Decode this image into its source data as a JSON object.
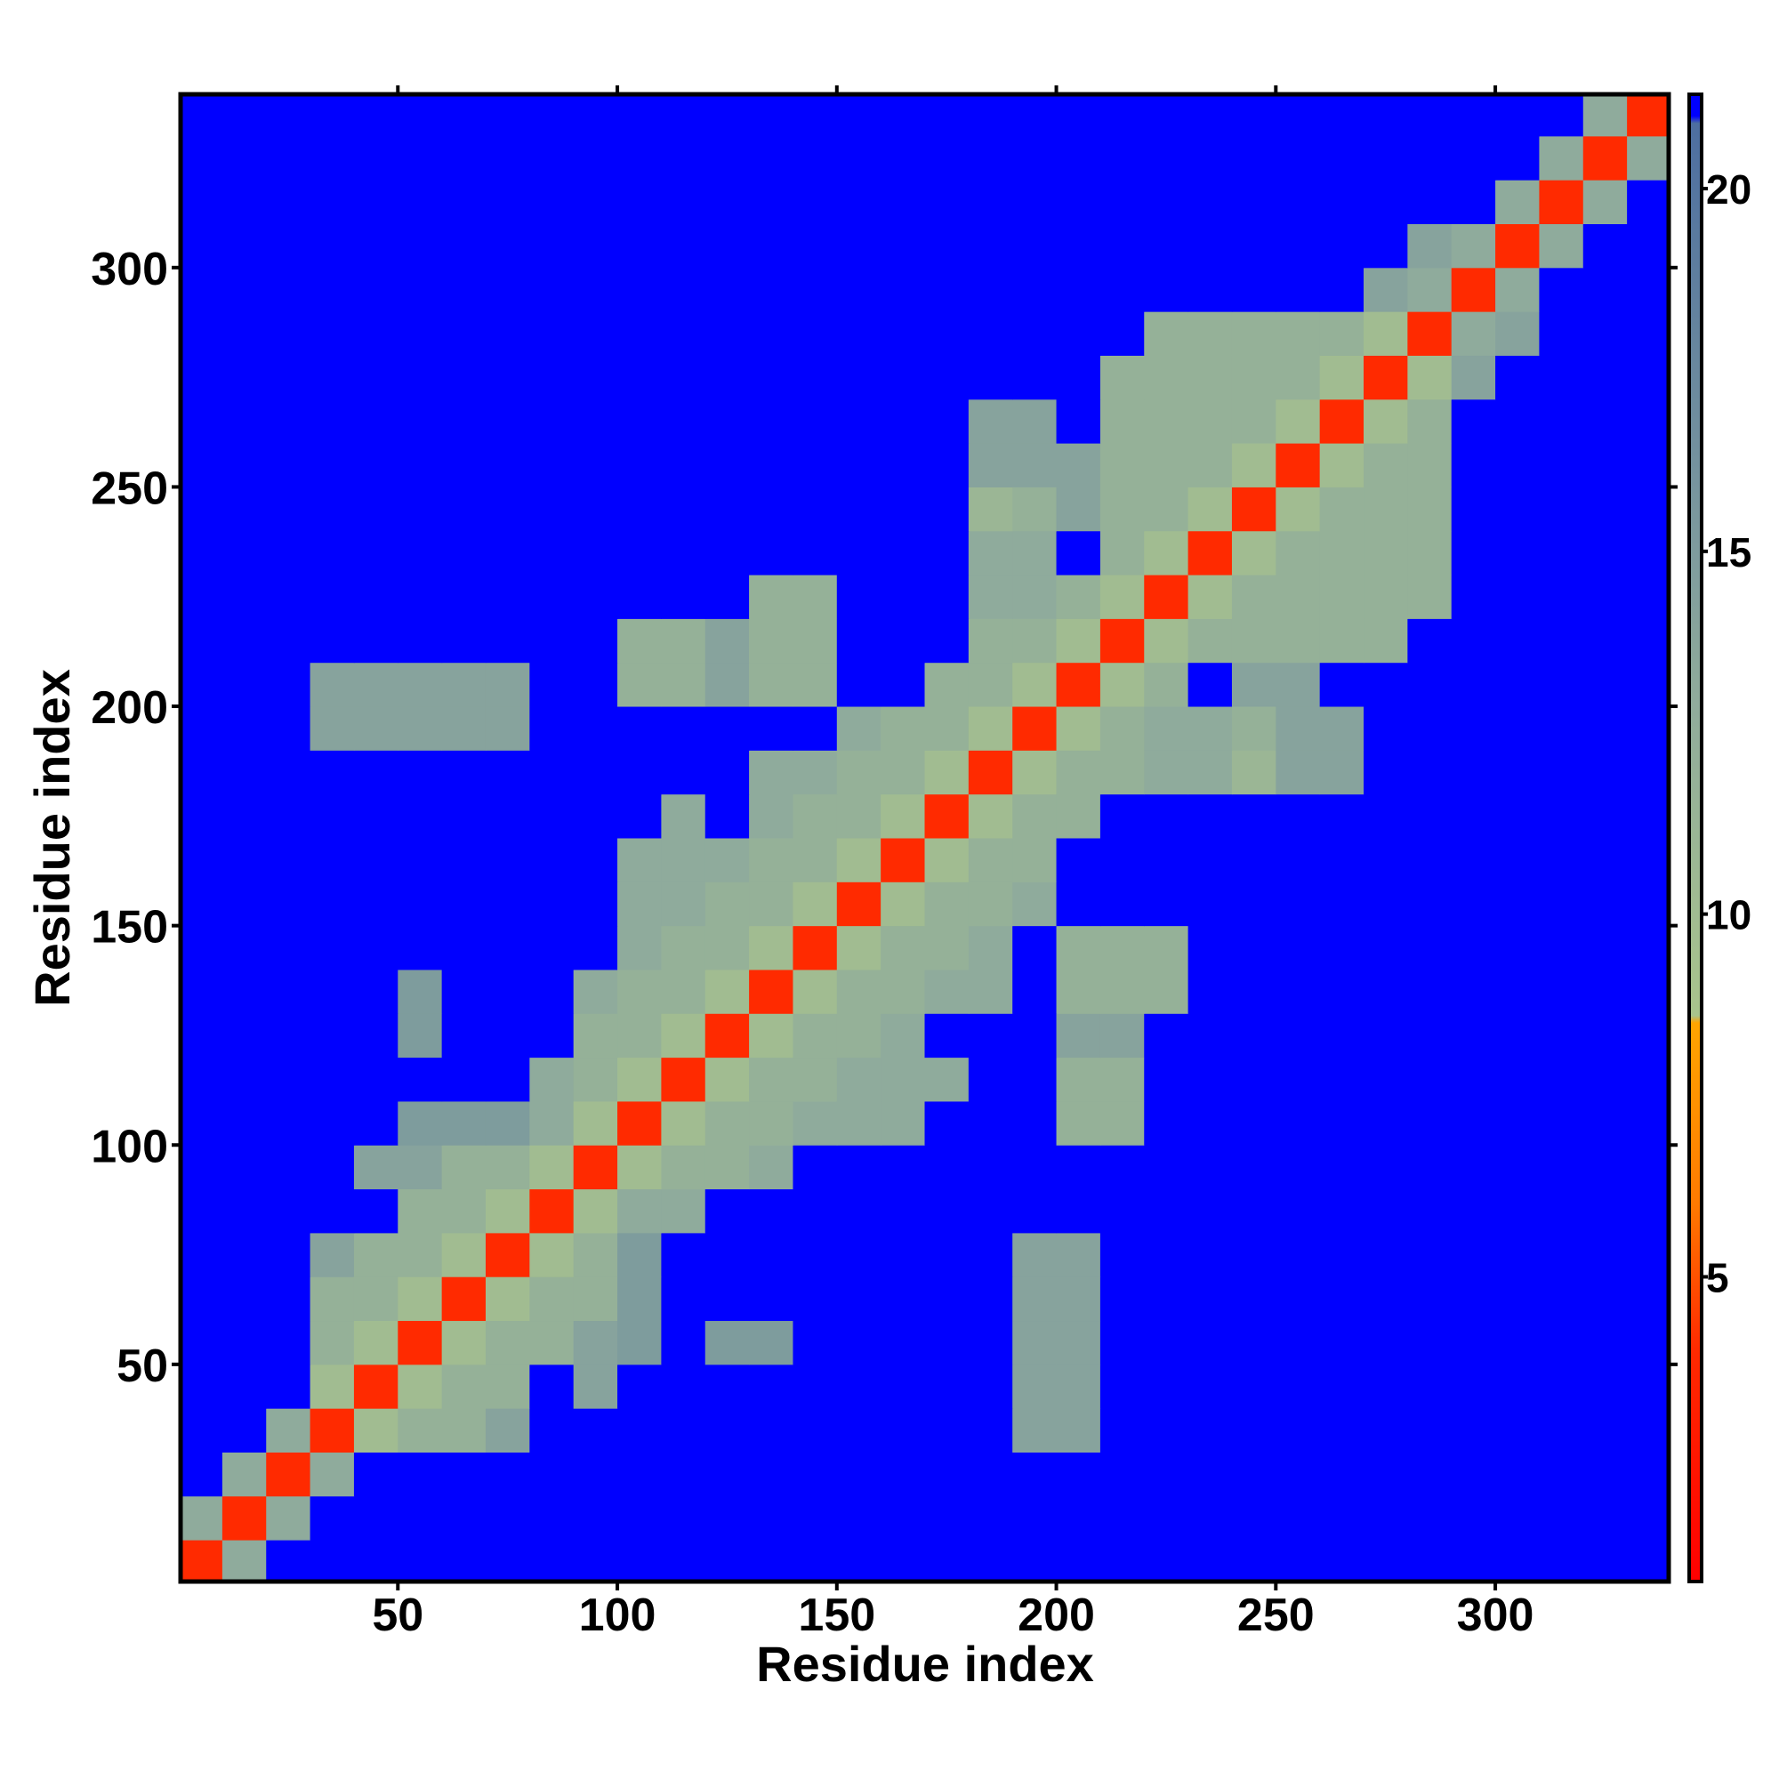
{
  "chart_data": {
    "type": "heatmap",
    "xlabel": "Residue index",
    "ylabel": "Residue index",
    "xlim": [
      0.5,
      339.5
    ],
    "ylim": [
      0.5,
      339.5
    ],
    "xticks": [
      50,
      100,
      150,
      200,
      250,
      300
    ],
    "yticks": [
      50,
      100,
      150,
      200,
      250,
      300
    ],
    "zlim": [
      0.8,
      21.3
    ],
    "zticks": [
      5,
      10,
      15,
      20
    ],
    "colorscale": [
      [
        0.8,
        "#ff0000"
      ],
      [
        4,
        "#ff2a00"
      ],
      [
        6,
        "#ff7a00"
      ],
      [
        8.5,
        "#ffa500"
      ],
      [
        8.6,
        "#a9c48c"
      ],
      [
        13,
        "#8fab9c"
      ],
      [
        20.9,
        "#4d6ea0"
      ],
      [
        21,
        "#0000ff"
      ]
    ],
    "x": [
      5,
      15,
      25,
      35,
      45,
      55,
      65,
      75,
      85,
      95,
      105,
      115,
      125,
      135,
      145,
      155,
      165,
      175,
      185,
      195,
      205,
      215,
      225,
      235,
      245,
      255,
      265,
      275,
      285,
      295,
      305,
      315,
      325,
      335
    ],
    "y": [
      5,
      15,
      25,
      35,
      45,
      55,
      65,
      75,
      85,
      95,
      105,
      115,
      125,
      135,
      145,
      155,
      165,
      175,
      185,
      195,
      205,
      215,
      225,
      235,
      245,
      255,
      265,
      275,
      285,
      295,
      305,
      315,
      325,
      335
    ],
    "z": [
      [
        4,
        13,
        21,
        21,
        21,
        21,
        21,
        21,
        21,
        21,
        21,
        21,
        21,
        21,
        21,
        21,
        21,
        21,
        21,
        21,
        21,
        21,
        21,
        21,
        21,
        21,
        21,
        21,
        21,
        21,
        21,
        21,
        21,
        21
      ],
      [
        13,
        4,
        13,
        21,
        21,
        21,
        21,
        21,
        21,
        21,
        21,
        21,
        21,
        21,
        21,
        21,
        21,
        21,
        21,
        21,
        21,
        21,
        21,
        21,
        21,
        21,
        21,
        21,
        21,
        21,
        21,
        21,
        21,
        21
      ],
      [
        21,
        13,
        4,
        13,
        21,
        21,
        21,
        21,
        21,
        21,
        21,
        21,
        21,
        21,
        21,
        21,
        21,
        21,
        21,
        21,
        21,
        21,
        21,
        21,
        21,
        21,
        21,
        21,
        21,
        21,
        21,
        21,
        21,
        21
      ],
      [
        21,
        21,
        13,
        4,
        10,
        12,
        12,
        14,
        21,
        21,
        21,
        21,
        21,
        21,
        21,
        21,
        21,
        21,
        21,
        14,
        14,
        21,
        21,
        21,
        21,
        21,
        21,
        21,
        21,
        21,
        21,
        21,
        21,
        21
      ],
      [
        21,
        21,
        21,
        10,
        4,
        10,
        12,
        12,
        21,
        14,
        21,
        21,
        21,
        21,
        21,
        21,
        21,
        21,
        21,
        14,
        14,
        21,
        21,
        21,
        21,
        21,
        21,
        21,
        21,
        21,
        21,
        21,
        21,
        21
      ],
      [
        21,
        21,
        21,
        12,
        10,
        4,
        10,
        12,
        12,
        14,
        15,
        21,
        15,
        15,
        21,
        21,
        21,
        21,
        21,
        14,
        14,
        21,
        21,
        21,
        21,
        21,
        21,
        21,
        21,
        21,
        21,
        21,
        21,
        21
      ],
      [
        21,
        21,
        21,
        12,
        12,
        10,
        4,
        10,
        12,
        12,
        15,
        21,
        21,
        21,
        21,
        21,
        21,
        21,
        21,
        14,
        14,
        21,
        21,
        21,
        21,
        21,
        21,
        21,
        21,
        21,
        21,
        21,
        21,
        21
      ],
      [
        21,
        21,
        21,
        14,
        12,
        12,
        10,
        4,
        10,
        12,
        15,
        21,
        21,
        21,
        21,
        21,
        21,
        21,
        21,
        14,
        14,
        21,
        21,
        21,
        21,
        21,
        21,
        21,
        21,
        21,
        21,
        21,
        21,
        21
      ],
      [
        21,
        21,
        21,
        21,
        21,
        12,
        12,
        10,
        4,
        10,
        13,
        13,
        21,
        21,
        21,
        21,
        21,
        21,
        21,
        21,
        21,
        21,
        21,
        21,
        21,
        21,
        21,
        21,
        21,
        21,
        21,
        21,
        21,
        21
      ],
      [
        21,
        21,
        21,
        21,
        14,
        14,
        12,
        12,
        10,
        4,
        10,
        12,
        12,
        13,
        21,
        21,
        21,
        21,
        21,
        21,
        21,
        21,
        21,
        21,
        21,
        21,
        21,
        21,
        21,
        21,
        21,
        21,
        21,
        21
      ],
      [
        21,
        21,
        21,
        21,
        21,
        15,
        15,
        15,
        13,
        10,
        4,
        10,
        12,
        12,
        13,
        13,
        13,
        21,
        21,
        21,
        12,
        12,
        21,
        21,
        21,
        21,
        21,
        21,
        21,
        21,
        21,
        21,
        21,
        21
      ],
      [
        21,
        21,
        21,
        21,
        21,
        21,
        21,
        21,
        13,
        12,
        10,
        4,
        10,
        12,
        12,
        13,
        13,
        13,
        21,
        21,
        12,
        12,
        21,
        21,
        21,
        21,
        21,
        21,
        21,
        21,
        21,
        21,
        21,
        21
      ],
      [
        21,
        21,
        21,
        21,
        21,
        15,
        21,
        21,
        21,
        12,
        12,
        10,
        4,
        10,
        12,
        12,
        13,
        21,
        21,
        21,
        14,
        14,
        21,
        21,
        21,
        21,
        21,
        21,
        21,
        21,
        21,
        21,
        21,
        21
      ],
      [
        21,
        21,
        21,
        21,
        21,
        15,
        21,
        21,
        21,
        13,
        12,
        12,
        10,
        4,
        10,
        12,
        12,
        13,
        13,
        21,
        12,
        12,
        12,
        21,
        21,
        21,
        21,
        21,
        21,
        21,
        21,
        21,
        21,
        21
      ],
      [
        21,
        21,
        21,
        21,
        21,
        21,
        21,
        21,
        21,
        21,
        13,
        12,
        12,
        10,
        4,
        10,
        12,
        12,
        13,
        21,
        12,
        12,
        12,
        21,
        21,
        21,
        21,
        21,
        21,
        21,
        21,
        21,
        21,
        21
      ],
      [
        21,
        21,
        21,
        21,
        21,
        21,
        21,
        21,
        21,
        21,
        13,
        13,
        12,
        12,
        10,
        4,
        10,
        12,
        12,
        13,
        21,
        21,
        21,
        21,
        21,
        21,
        21,
        21,
        21,
        21,
        21,
        21,
        21,
        21
      ],
      [
        21,
        21,
        21,
        21,
        21,
        21,
        21,
        21,
        21,
        21,
        13,
        13,
        13,
        12,
        12,
        10,
        4,
        10,
        12,
        12,
        21,
        21,
        21,
        21,
        21,
        21,
        21,
        21,
        21,
        21,
        21,
        21,
        21,
        21
      ],
      [
        21,
        21,
        21,
        21,
        21,
        21,
        21,
        21,
        21,
        21,
        21,
        13,
        21,
        13,
        12,
        12,
        10,
        4,
        10,
        12,
        12,
        21,
        21,
        21,
        21,
        21,
        21,
        21,
        21,
        21,
        21,
        21,
        21,
        21
      ],
      [
        21,
        21,
        21,
        21,
        21,
        21,
        21,
        21,
        21,
        21,
        21,
        21,
        21,
        13,
        13,
        12,
        12,
        10,
        4,
        10,
        12,
        12,
        13,
        13,
        11,
        14,
        14,
        21,
        21,
        21,
        21,
        21,
        21,
        21
      ],
      [
        21,
        21,
        21,
        14,
        14,
        14,
        14,
        14,
        21,
        21,
        21,
        21,
        21,
        21,
        21,
        13,
        12,
        12,
        10,
        4,
        10,
        12,
        13,
        13,
        12,
        14,
        14,
        21,
        21,
        21,
        21,
        21,
        21,
        21
      ],
      [
        21,
        21,
        21,
        14,
        14,
        14,
        14,
        14,
        21,
        21,
        12,
        12,
        14,
        12,
        12,
        21,
        21,
        12,
        12,
        10,
        4,
        10,
        12,
        21,
        14,
        14,
        21,
        21,
        21,
        21,
        21,
        21,
        21,
        21
      ],
      [
        21,
        21,
        21,
        21,
        21,
        21,
        21,
        21,
        21,
        21,
        12,
        12,
        14,
        12,
        12,
        21,
        21,
        21,
        12,
        12,
        10,
        4,
        10,
        12,
        12,
        12,
        12,
        12,
        21,
        21,
        21,
        21,
        21,
        21
      ],
      [
        21,
        21,
        21,
        21,
        21,
        21,
        21,
        21,
        21,
        21,
        21,
        21,
        21,
        12,
        12,
        21,
        21,
        21,
        13,
        13,
        12,
        10,
        4,
        10,
        12,
        12,
        12,
        12,
        12,
        21,
        21,
        21,
        21,
        21
      ],
      [
        21,
        21,
        21,
        21,
        21,
        21,
        21,
        21,
        21,
        21,
        21,
        21,
        21,
        21,
        21,
        21,
        21,
        21,
        13,
        13,
        21,
        12,
        10,
        4,
        10,
        12,
        12,
        12,
        12,
        21,
        21,
        21,
        21,
        21
      ],
      [
        21,
        21,
        21,
        21,
        21,
        21,
        21,
        21,
        21,
        21,
        21,
        21,
        21,
        21,
        21,
        21,
        21,
        21,
        11,
        12,
        14,
        12,
        12,
        10,
        4,
        10,
        12,
        12,
        12,
        21,
        21,
        21,
        21,
        21
      ],
      [
        21,
        21,
        21,
        21,
        21,
        21,
        21,
        21,
        21,
        21,
        21,
        21,
        21,
        21,
        21,
        21,
        21,
        21,
        14,
        14,
        14,
        12,
        12,
        12,
        10,
        4,
        10,
        12,
        12,
        21,
        21,
        21,
        21,
        21
      ],
      [
        21,
        21,
        21,
        21,
        21,
        21,
        21,
        21,
        21,
        21,
        21,
        21,
        21,
        21,
        21,
        21,
        21,
        21,
        14,
        14,
        21,
        12,
        12,
        12,
        12,
        10,
        4,
        10,
        12,
        21,
        21,
        21,
        21,
        21
      ],
      [
        21,
        21,
        21,
        21,
        21,
        21,
        21,
        21,
        21,
        21,
        21,
        21,
        21,
        21,
        21,
        21,
        21,
        21,
        21,
        21,
        21,
        12,
        12,
        12,
        12,
        12,
        10,
        4,
        10,
        14,
        21,
        21,
        21,
        21
      ],
      [
        21,
        21,
        21,
        21,
        21,
        21,
        21,
        21,
        21,
        21,
        21,
        21,
        21,
        21,
        21,
        21,
        21,
        21,
        21,
        21,
        21,
        21,
        12,
        12,
        12,
        12,
        12,
        10,
        4,
        13,
        14,
        21,
        21,
        21
      ],
      [
        21,
        21,
        21,
        21,
        21,
        21,
        21,
        21,
        21,
        21,
        21,
        21,
        21,
        21,
        21,
        21,
        21,
        21,
        21,
        21,
        21,
        21,
        21,
        21,
        21,
        21,
        21,
        14,
        13,
        4,
        13,
        21,
        21,
        21
      ],
      [
        21,
        21,
        21,
        21,
        21,
        21,
        21,
        21,
        21,
        21,
        21,
        21,
        21,
        21,
        21,
        21,
        21,
        21,
        21,
        21,
        21,
        21,
        21,
        21,
        21,
        21,
        21,
        21,
        14,
        13,
        4,
        13,
        21,
        21
      ],
      [
        21,
        21,
        21,
        21,
        21,
        21,
        21,
        21,
        21,
        21,
        21,
        21,
        21,
        21,
        21,
        21,
        21,
        21,
        21,
        21,
        21,
        21,
        21,
        21,
        21,
        21,
        21,
        21,
        21,
        21,
        13,
        4,
        13,
        21
      ],
      [
        21,
        21,
        21,
        21,
        21,
        21,
        21,
        21,
        21,
        21,
        21,
        21,
        21,
        21,
        21,
        21,
        21,
        21,
        21,
        21,
        21,
        21,
        21,
        21,
        21,
        21,
        21,
        21,
        21,
        21,
        21,
        13,
        4,
        13
      ],
      [
        21,
        21,
        21,
        21,
        21,
        21,
        21,
        21,
        21,
        21,
        21,
        21,
        21,
        21,
        21,
        21,
        21,
        21,
        21,
        21,
        21,
        21,
        21,
        21,
        21,
        21,
        21,
        21,
        21,
        21,
        21,
        21,
        13,
        4
      ]
    ]
  }
}
